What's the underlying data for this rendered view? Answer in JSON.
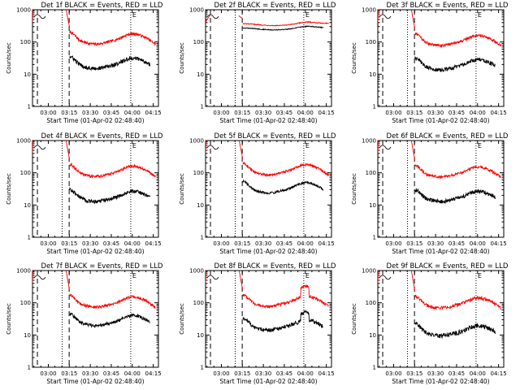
{
  "page": {
    "background": "#ffffff",
    "axis_color": "#000000",
    "events_color": "#000000",
    "lld_color": "#ff0000"
  },
  "common": {
    "ylabel": "Counts/sec",
    "xlabel": "Start Time (01-Apr-02 02:48:40)",
    "x_tick_labels": [
      "03:00",
      "03:15",
      "03:30",
      "03:45",
      "04:00",
      "04:15"
    ],
    "y_tick_labels": [
      "1",
      "10",
      "100",
      "1000"
    ],
    "marker_label": "E",
    "ylim": [
      1,
      1000
    ],
    "y_scale": "log",
    "xlim_minutes_after_start": [
      0,
      90
    ]
  },
  "chart_data": [
    {
      "type": "line",
      "title": "Det 1f BLACK = Events, RED = LLD",
      "x_tick_labels": [
        "03:00",
        "03:15",
        "03:30",
        "03:45",
        "04:00",
        "04:15"
      ],
      "y_scale": "log",
      "ylim": [
        1,
        1000
      ],
      "series": [
        {
          "name": "LLD",
          "color": "#ff0000",
          "shape": "broad",
          "base": 200,
          "jitter": 0.1,
          "pre_decay": true,
          "peak_left": 8000,
          "peak_right": 1200
        },
        {
          "name": "Events",
          "color": "#000000",
          "shape": "broad",
          "base": 35,
          "jitter": 0.14
        }
      ],
      "markers": {
        "dashed": [
          3.5,
          26.2
        ],
        "dotted": [
          21.2,
          70.2
        ]
      }
    },
    {
      "type": "line",
      "title": "Det 2f BLACK = Events, RED = LLD",
      "x_tick_labels": [
        "03:00",
        "03:15",
        "03:30",
        "03:45",
        "04:00",
        "04:15"
      ],
      "y_scale": "log",
      "ylim": [
        1,
        1000
      ],
      "series": [
        {
          "name": "LLD",
          "color": "#ff0000",
          "shape": "flat",
          "base": 380,
          "jitter": 0.03,
          "pre_decay": false,
          "peak_left": 700,
          "peak_right": 650
        },
        {
          "name": "Events",
          "color": "#000000",
          "shape": "flat",
          "base": 280,
          "jitter": 0.03
        }
      ],
      "markers": {
        "dashed": [
          3.5,
          26.2
        ],
        "dotted": [
          21.2,
          70.2
        ]
      }
    },
    {
      "type": "line",
      "title": "Det 3f BLACK = Events, RED = LLD",
      "x_tick_labels": [
        "03:00",
        "03:15",
        "03:30",
        "03:45",
        "04:00",
        "04:15"
      ],
      "y_scale": "log",
      "ylim": [
        1,
        1000
      ],
      "series": [
        {
          "name": "LLD",
          "color": "#ff0000",
          "shape": "broad",
          "base": 180,
          "jitter": 0.1,
          "pre_decay": true,
          "peak_left": 8000,
          "peak_right": 1200
        },
        {
          "name": "Events",
          "color": "#000000",
          "shape": "broad",
          "base": 32,
          "jitter": 0.14
        }
      ],
      "markers": {
        "dashed": [
          3.5,
          26.2
        ],
        "dotted": [
          21.2,
          70.2
        ]
      }
    },
    {
      "type": "line",
      "title": "Det 4f BLACK = Events, RED = LLD",
      "x_tick_labels": [
        "03:00",
        "03:15",
        "03:30",
        "03:45",
        "04:00",
        "04:15"
      ],
      "y_scale": "log",
      "ylim": [
        1,
        1000
      ],
      "series": [
        {
          "name": "LLD",
          "color": "#ff0000",
          "shape": "broad",
          "base": 180,
          "jitter": 0.1,
          "pre_decay": true,
          "peak_left": 8000,
          "peak_right": 1200
        },
        {
          "name": "Events",
          "color": "#000000",
          "shape": "broad",
          "base": 30,
          "jitter": 0.14
        }
      ],
      "markers": {
        "dashed": [
          3.5,
          26.2
        ],
        "dotted": [
          21.2,
          70.2
        ]
      }
    },
    {
      "type": "line",
      "title": "Det 5f BLACK = Events, RED = LLD",
      "x_tick_labels": [
        "03:00",
        "03:15",
        "03:30",
        "03:45",
        "04:00",
        "04:15"
      ],
      "y_scale": "log",
      "ylim": [
        1,
        1000
      ],
      "series": [
        {
          "name": "LLD",
          "color": "#ff0000",
          "shape": "broad",
          "base": 200,
          "jitter": 0.08,
          "pre_decay": true,
          "peak_left": 8000,
          "peak_right": 1200
        },
        {
          "name": "Events",
          "color": "#000000",
          "shape": "broad",
          "base": 55,
          "jitter": 0.08
        }
      ],
      "markers": {
        "dashed": [
          3.5,
          26.2
        ],
        "dotted": [
          21.2,
          70.2
        ]
      }
    },
    {
      "type": "line",
      "title": "Det 6f BLACK = Events, RED = LLD",
      "x_tick_labels": [
        "03:00",
        "03:15",
        "03:30",
        "03:45",
        "04:00",
        "04:15"
      ],
      "y_scale": "log",
      "ylim": [
        1,
        1000
      ],
      "series": [
        {
          "name": "LLD",
          "color": "#ff0000",
          "shape": "broad",
          "base": 170,
          "jitter": 0.1,
          "pre_decay": true,
          "peak_left": 8000,
          "peak_right": 1200
        },
        {
          "name": "Events",
          "color": "#000000",
          "shape": "broad",
          "base": 30,
          "jitter": 0.14
        }
      ],
      "markers": {
        "dashed": [
          3.5,
          26.2
        ],
        "dotted": [
          21.2,
          70.2
        ]
      }
    },
    {
      "type": "line",
      "title": "Det 7f BLACK = Events, RED = LLD",
      "x_tick_labels": [
        "03:00",
        "03:15",
        "03:30",
        "03:45",
        "04:00",
        "04:15"
      ],
      "y_scale": "log",
      "ylim": [
        1,
        1000
      ],
      "series": [
        {
          "name": "LLD",
          "color": "#ff0000",
          "shape": "broad",
          "base": 170,
          "jitter": 0.1,
          "pre_decay": true,
          "peak_left": 8000,
          "peak_right": 1200
        },
        {
          "name": "Events",
          "color": "#000000",
          "shape": "broad",
          "base": 45,
          "jitter": 0.12
        }
      ],
      "markers": {
        "dashed": [
          3.5,
          26.2
        ],
        "dotted": [
          21.2,
          70.2
        ]
      }
    },
    {
      "type": "line",
      "title": "Det 8f BLACK = Events, RED = LLD",
      "x_tick_labels": [
        "03:00",
        "03:15",
        "03:30",
        "03:45",
        "04:00",
        "04:15"
      ],
      "y_scale": "log",
      "ylim": [
        1,
        1000
      ],
      "series": [
        {
          "name": "LLD",
          "color": "#ff0000",
          "shape": "broad",
          "base": 180,
          "jitter": 0.1,
          "pre_decay": true,
          "peak_left": 8000,
          "peak_right": 1200,
          "bump": 2.0
        },
        {
          "name": "Events",
          "color": "#000000",
          "shape": "broad",
          "base": 33,
          "jitter": 0.14,
          "bump": 1.7
        }
      ],
      "markers": {
        "dashed": [
          3.5,
          26.2
        ],
        "dotted": [
          21.2,
          70.2
        ]
      }
    },
    {
      "type": "line",
      "title": "Det 9f BLACK = Events, RED = LLD",
      "x_tick_labels": [
        "03:00",
        "03:15",
        "03:30",
        "03:45",
        "04:00",
        "04:15"
      ],
      "y_scale": "log",
      "ylim": [
        1,
        1000
      ],
      "series": [
        {
          "name": "LLD",
          "color": "#ff0000",
          "shape": "broad",
          "base": 160,
          "jitter": 0.12,
          "pre_decay": true,
          "peak_left": 8000,
          "peak_right": 1200
        },
        {
          "name": "Events",
          "color": "#000000",
          "shape": "broad",
          "base": 22,
          "jitter": 0.16
        }
      ],
      "markers": {
        "dashed": [
          3.5,
          26.2
        ],
        "dotted": [
          21.2,
          70.2
        ]
      }
    }
  ]
}
